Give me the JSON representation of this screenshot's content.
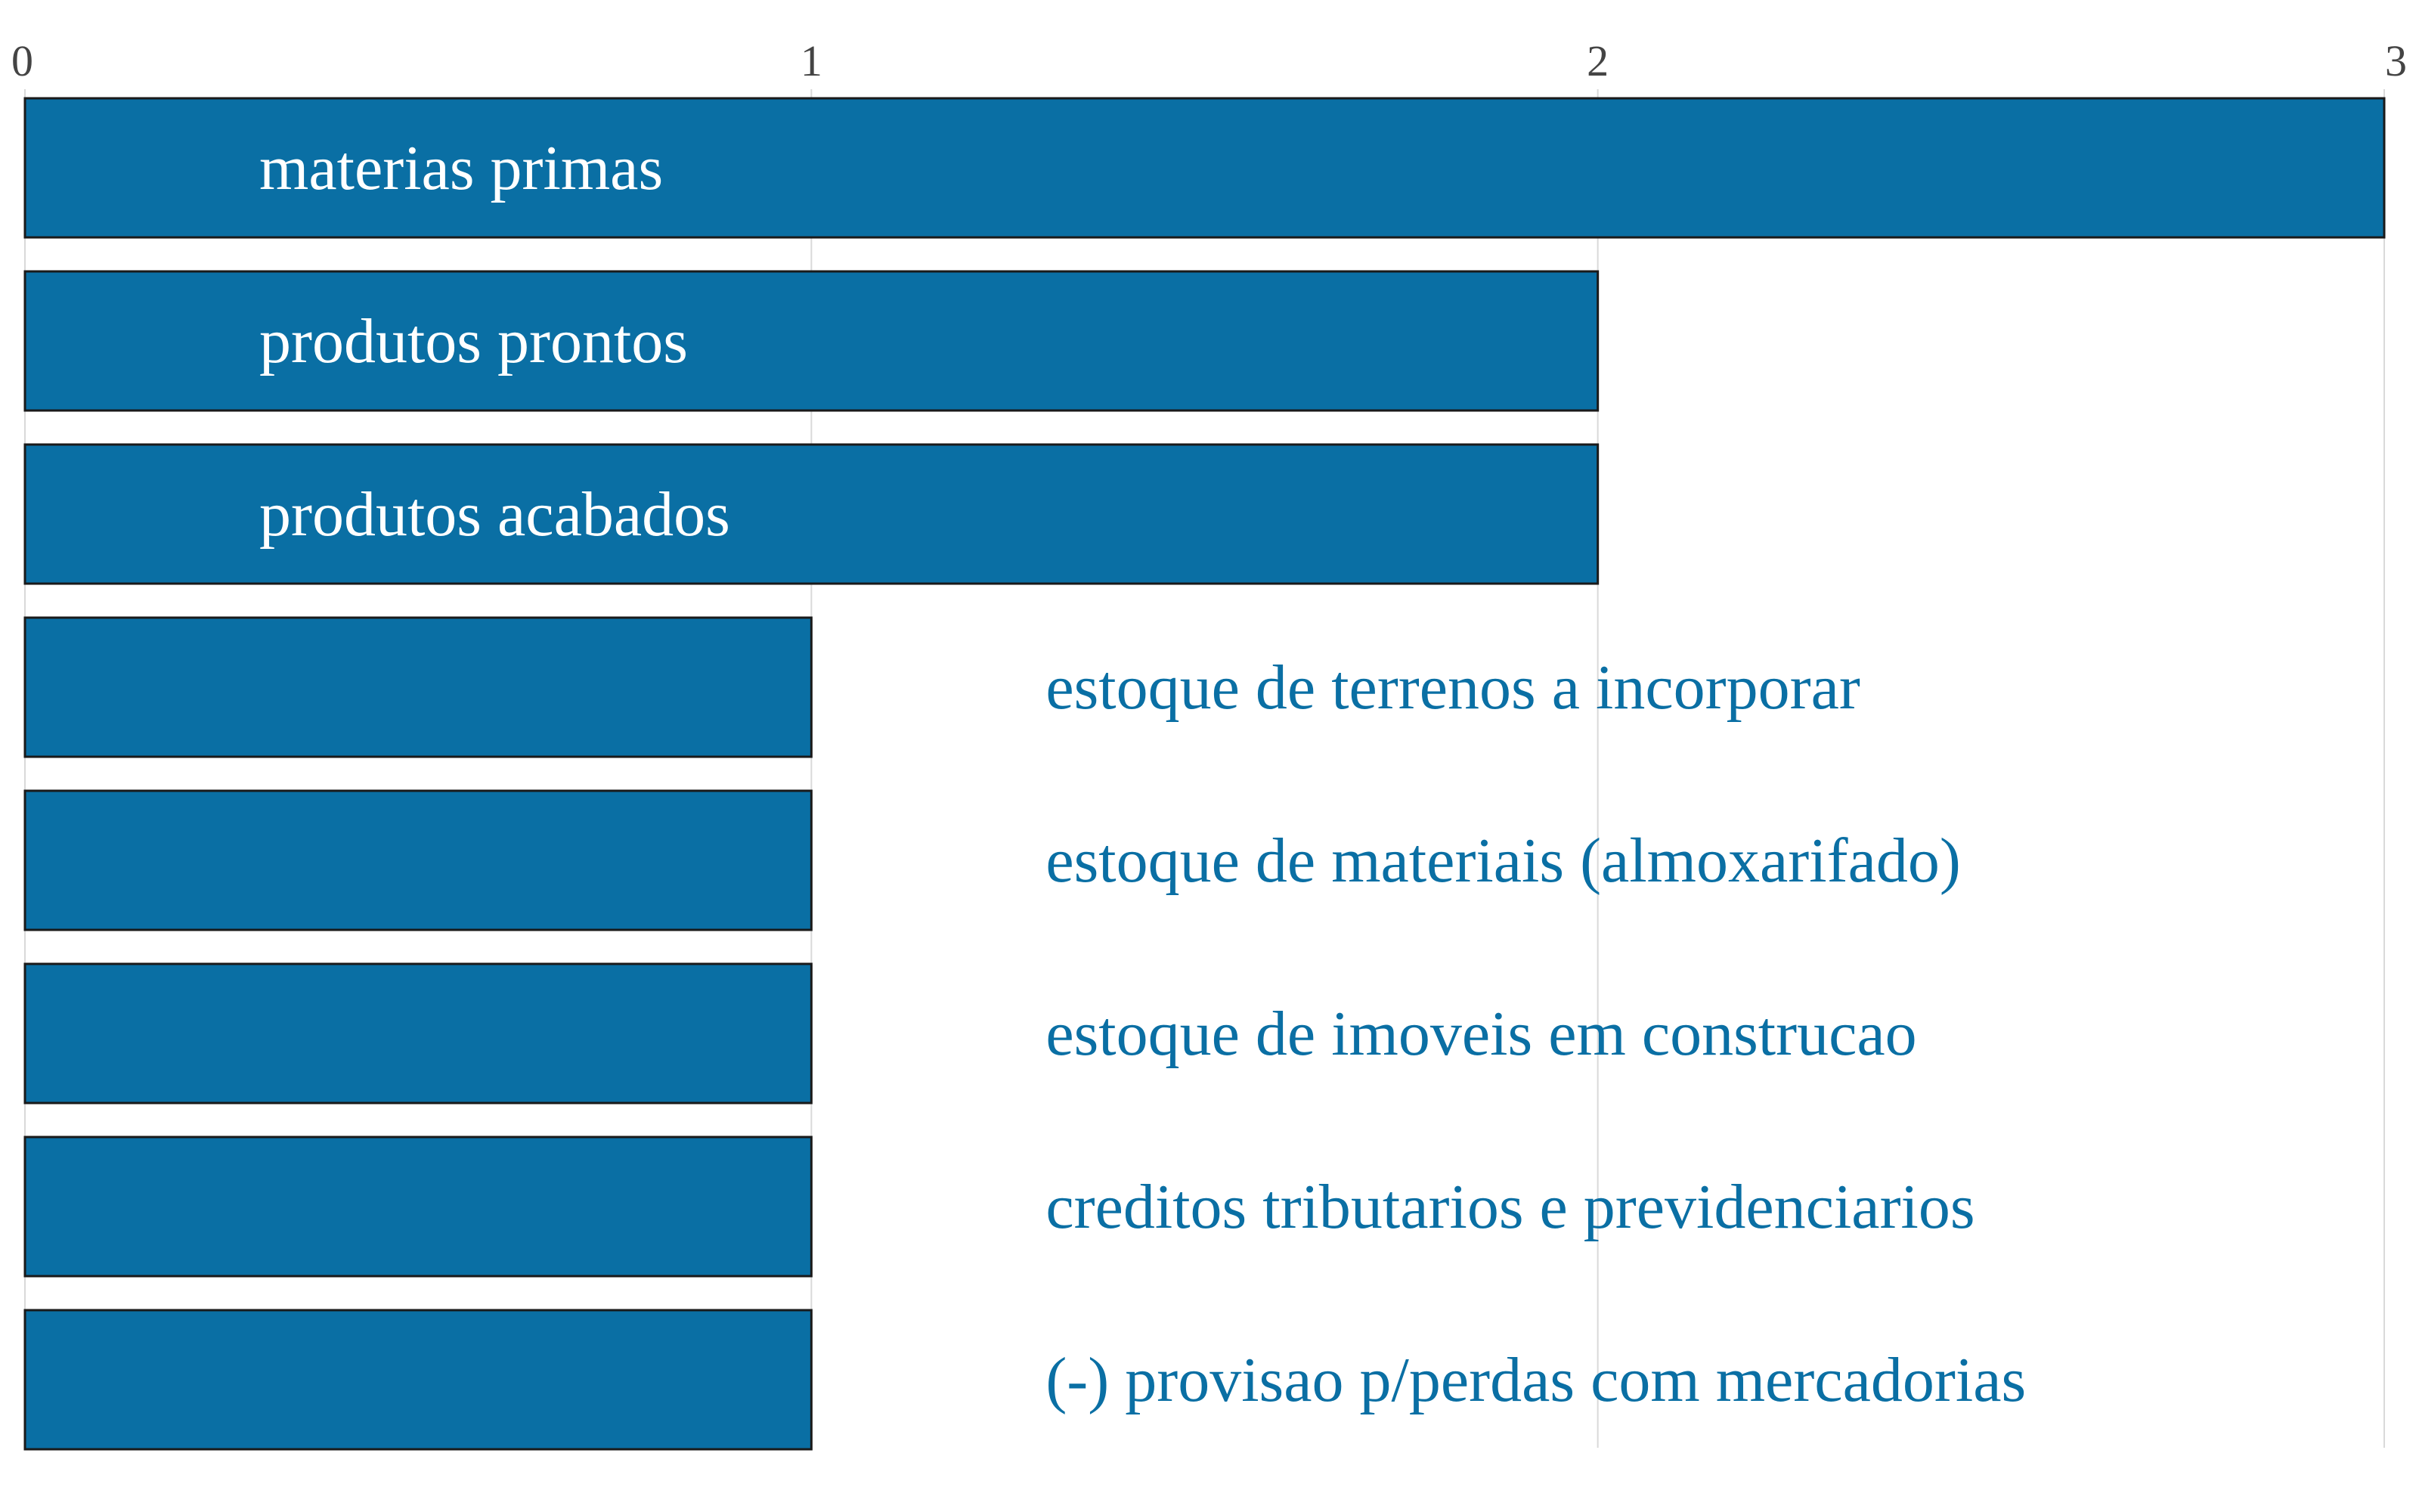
{
  "chart_data": {
    "type": "bar",
    "orientation": "horizontal",
    "title": "",
    "xlabel": "",
    "ylabel": "",
    "xlim": [
      0,
      3
    ],
    "x_ticks": [
      "0",
      "1",
      "2",
      "3"
    ],
    "x_axis_position": "top",
    "grid": true,
    "categories": [
      "materias primas",
      "produtos prontos",
      "produtos acabados",
      "estoque de terrenos a incorporar",
      "estoque de materiais (almoxarifado)",
      "estoque de imoveis em construcao",
      "creditos tributarios e previdenciarios",
      "(-) provisao p/perdas com mercadorias"
    ],
    "values": [
      3,
      2,
      2,
      1,
      1,
      1,
      1,
      1
    ],
    "colors": {
      "bar": "#0a6fa4",
      "bar_border": "#1a1a1a",
      "label_inside": "#ffffff",
      "label_outside": "#0a6fa4",
      "grid": "#d9d9d9",
      "tick_text": "#444444"
    }
  }
}
